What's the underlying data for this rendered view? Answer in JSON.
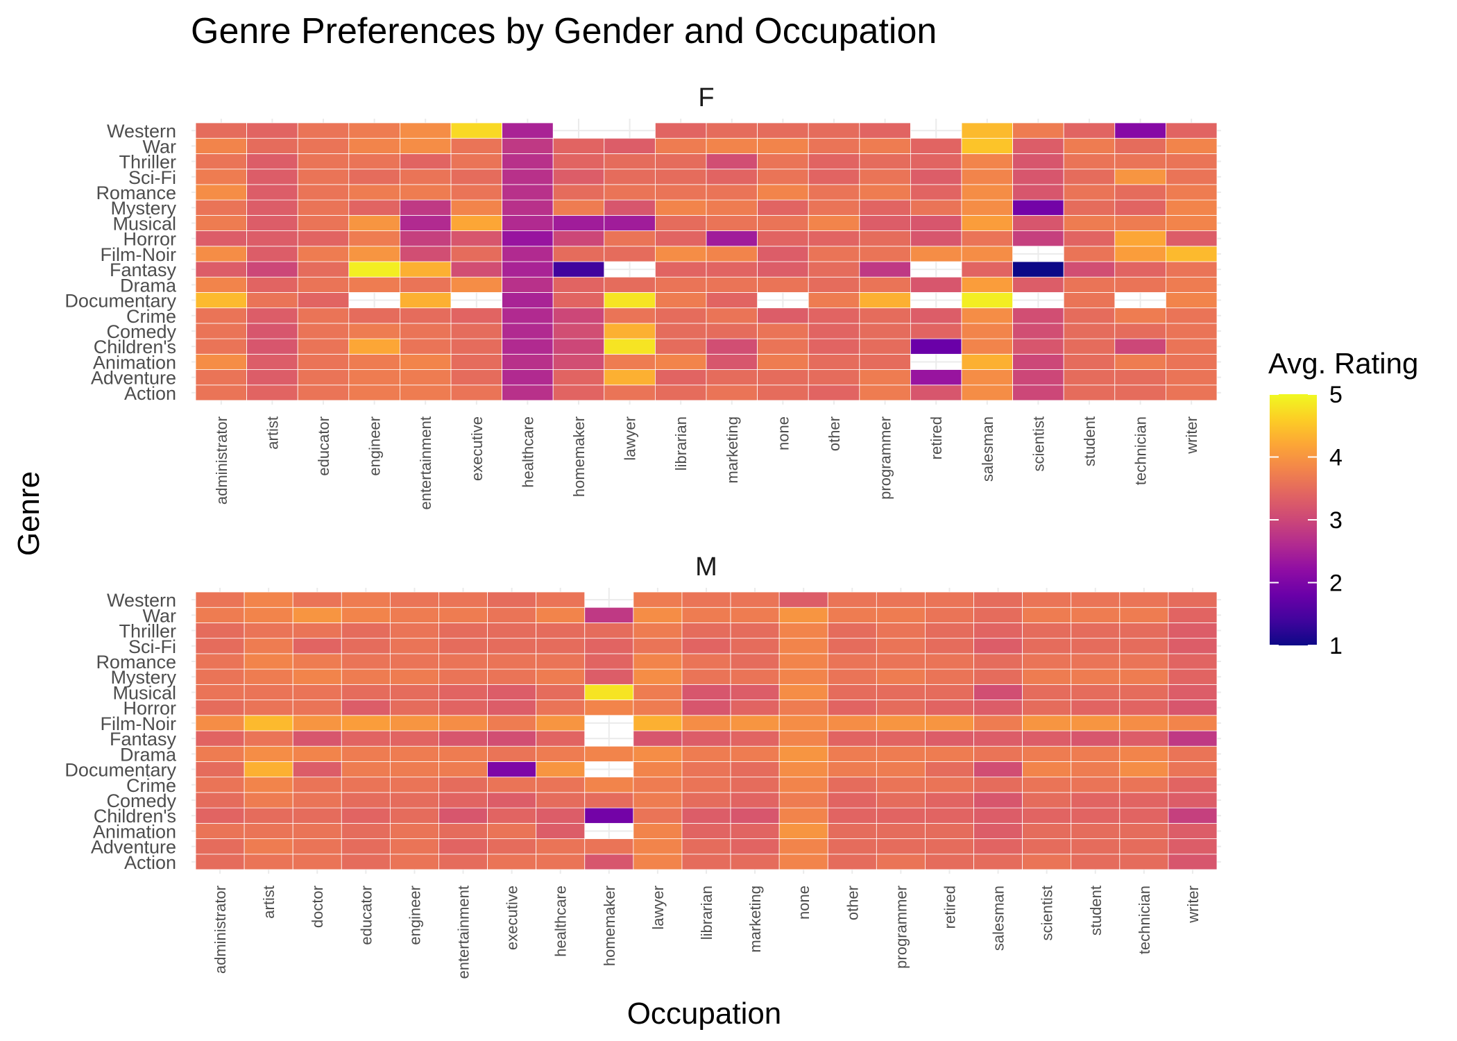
{
  "chart_data": {
    "type": "heatmap",
    "title": "Genre Preferences by Gender and Occupation",
    "xlabel": "Occupation",
    "ylabel": "Genre",
    "genres": [
      "Action",
      "Adventure",
      "Animation",
      "Children's",
      "Comedy",
      "Crime",
      "Documentary",
      "Drama",
      "Fantasy",
      "Film-Noir",
      "Horror",
      "Musical",
      "Mystery",
      "Romance",
      "Sci-Fi",
      "Thriller",
      "War",
      "Western"
    ],
    "legend": {
      "title": "Avg. Rating",
      "range": [
        1,
        5
      ],
      "ticks": [
        1,
        2,
        3,
        4,
        5
      ],
      "palette": "plasma",
      "position": "right"
    },
    "grid": true,
    "panels": [
      {
        "label": "F",
        "occupations": [
          "administrator",
          "artist",
          "educator",
          "engineer",
          "entertainment",
          "executive",
          "healthcare",
          "homemaker",
          "lawyer",
          "librarian",
          "marketing",
          "none",
          "other",
          "programmer",
          "retired",
          "salesman",
          "scientist",
          "student",
          "technician",
          "writer"
        ],
        "values": [
          [
            3.6,
            3.4,
            3.6,
            3.7,
            3.7,
            3.6,
            2.7,
            3.4,
            3.6,
            3.5,
            3.6,
            3.5,
            3.4,
            3.7,
            3.2,
            3.9,
            3.0,
            3.5,
            3.5,
            3.6
          ],
          [
            3.6,
            3.3,
            3.6,
            3.7,
            3.7,
            3.5,
            2.6,
            3.4,
            4.3,
            3.4,
            3.5,
            3.5,
            3.5,
            3.7,
            2.3,
            3.9,
            3.0,
            3.5,
            3.5,
            3.6
          ],
          [
            3.9,
            3.3,
            3.6,
            3.7,
            3.8,
            3.5,
            2.7,
            3.1,
            3.7,
            3.8,
            3.2,
            3.7,
            3.5,
            3.5,
            null,
            4.3,
            3.0,
            3.5,
            3.7,
            3.6
          ],
          [
            3.6,
            3.2,
            3.6,
            4.2,
            3.6,
            3.5,
            2.6,
            3.0,
            4.8,
            3.5,
            3.1,
            3.6,
            3.4,
            3.5,
            1.8,
            3.8,
            3.2,
            3.5,
            3.0,
            3.6
          ],
          [
            3.6,
            3.2,
            3.6,
            3.7,
            3.6,
            3.5,
            2.6,
            3.1,
            4.3,
            3.5,
            3.5,
            3.6,
            3.4,
            3.5,
            3.4,
            3.8,
            3.1,
            3.5,
            3.5,
            3.6
          ],
          [
            3.6,
            3.3,
            3.6,
            3.5,
            3.5,
            3.4,
            2.6,
            3.0,
            3.6,
            3.5,
            3.6,
            3.3,
            3.4,
            3.5,
            3.3,
            3.9,
            3.1,
            3.5,
            3.7,
            3.6
          ],
          [
            4.4,
            3.6,
            3.4,
            null,
            4.3,
            null,
            2.5,
            3.4,
            4.8,
            3.7,
            3.4,
            null,
            3.7,
            4.3,
            null,
            4.9,
            null,
            3.6,
            null,
            3.8
          ],
          [
            3.8,
            3.4,
            3.6,
            3.7,
            3.6,
            3.9,
            2.7,
            3.4,
            3.5,
            3.6,
            3.6,
            3.6,
            3.5,
            3.6,
            3.2,
            4.1,
            3.3,
            3.6,
            3.6,
            3.7
          ],
          [
            3.3,
            3.0,
            3.5,
            4.9,
            4.3,
            3.1,
            2.5,
            1.4,
            null,
            3.4,
            3.4,
            3.3,
            3.5,
            2.8,
            null,
            3.4,
            1.0,
            3.1,
            3.4,
            3.6
          ],
          [
            3.9,
            3.3,
            3.7,
            4.0,
            3.1,
            3.5,
            2.6,
            3.5,
            3.5,
            3.9,
            3.8,
            3.3,
            3.6,
            3.6,
            3.9,
            3.9,
            null,
            3.6,
            4.1,
            4.4
          ],
          [
            3.3,
            3.3,
            3.4,
            3.7,
            2.9,
            3.2,
            2.3,
            3.0,
            3.6,
            3.4,
            2.4,
            3.4,
            3.4,
            3.5,
            3.2,
            3.6,
            2.9,
            3.4,
            4.2,
            3.3
          ],
          [
            3.7,
            3.3,
            3.6,
            4.0,
            2.6,
            4.2,
            2.6,
            2.4,
            2.4,
            3.5,
            3.6,
            3.6,
            3.8,
            3.3,
            3.2,
            4.1,
            3.2,
            3.7,
            3.7,
            3.8
          ],
          [
            3.6,
            3.3,
            3.6,
            3.4,
            2.8,
            3.8,
            2.7,
            3.7,
            3.2,
            3.8,
            3.7,
            3.4,
            3.6,
            3.4,
            3.6,
            3.9,
            1.9,
            3.5,
            3.4,
            3.8
          ],
          [
            3.9,
            3.3,
            3.6,
            3.7,
            3.7,
            3.6,
            2.7,
            3.5,
            3.6,
            3.6,
            3.6,
            3.8,
            3.6,
            3.7,
            3.4,
            3.9,
            3.2,
            3.6,
            3.5,
            3.7
          ],
          [
            3.7,
            3.3,
            3.6,
            3.5,
            3.6,
            3.5,
            2.7,
            3.3,
            3.5,
            3.5,
            3.4,
            3.6,
            3.4,
            3.6,
            3.3,
            3.8,
            3.2,
            3.5,
            4.0,
            3.6
          ],
          [
            3.6,
            3.3,
            3.6,
            3.6,
            3.4,
            3.6,
            2.7,
            3.4,
            3.5,
            3.5,
            3.1,
            3.6,
            3.4,
            3.5,
            3.4,
            3.8,
            3.2,
            3.6,
            3.6,
            3.6
          ],
          [
            3.8,
            3.5,
            3.6,
            3.8,
            3.9,
            3.6,
            2.8,
            3.4,
            3.3,
            3.7,
            3.8,
            3.8,
            3.6,
            3.7,
            3.4,
            4.5,
            3.3,
            3.7,
            3.5,
            3.8
          ],
          [
            3.5,
            3.4,
            3.6,
            3.7,
            3.9,
            4.7,
            2.5,
            null,
            null,
            3.4,
            3.5,
            3.5,
            3.5,
            3.4,
            null,
            4.4,
            3.7,
            3.4,
            2.1,
            3.4
          ]
        ]
      },
      {
        "label": "M",
        "occupations": [
          "administrator",
          "artist",
          "doctor",
          "educator",
          "engineer",
          "entertainment",
          "executive",
          "healthcare",
          "homemaker",
          "lawyer",
          "librarian",
          "marketing",
          "none",
          "other",
          "programmer",
          "retired",
          "salesman",
          "scientist",
          "student",
          "technician",
          "writer"
        ],
        "values": [
          [
            3.5,
            3.6,
            3.6,
            3.5,
            3.6,
            3.5,
            3.6,
            3.6,
            3.2,
            3.8,
            3.5,
            3.5,
            3.8,
            3.5,
            3.6,
            3.5,
            3.5,
            3.6,
            3.5,
            3.5,
            3.2
          ],
          [
            3.5,
            3.7,
            3.6,
            3.5,
            3.6,
            3.4,
            3.5,
            3.6,
            3.6,
            3.8,
            3.5,
            3.4,
            3.8,
            3.5,
            3.5,
            3.5,
            3.4,
            3.5,
            3.5,
            3.5,
            3.3
          ],
          [
            3.6,
            3.6,
            3.6,
            3.5,
            3.6,
            3.5,
            3.6,
            3.3,
            null,
            3.8,
            3.4,
            3.4,
            4.0,
            3.5,
            3.5,
            3.5,
            3.3,
            3.5,
            3.5,
            3.5,
            3.3
          ],
          [
            3.4,
            3.5,
            3.5,
            3.4,
            3.5,
            3.2,
            3.4,
            3.3,
            1.9,
            3.6,
            3.3,
            3.2,
            3.8,
            3.4,
            3.4,
            3.4,
            3.3,
            3.4,
            3.4,
            3.4,
            2.9
          ],
          [
            3.5,
            3.7,
            3.6,
            3.5,
            3.5,
            3.4,
            3.3,
            3.5,
            3.5,
            3.7,
            3.5,
            3.4,
            3.7,
            3.4,
            3.5,
            3.4,
            3.2,
            3.5,
            3.4,
            3.4,
            3.3
          ],
          [
            3.6,
            3.8,
            3.6,
            3.6,
            3.6,
            3.5,
            3.6,
            3.6,
            3.8,
            3.7,
            3.6,
            3.5,
            3.8,
            3.5,
            3.6,
            3.6,
            3.5,
            3.6,
            3.6,
            3.6,
            3.4
          ],
          [
            3.5,
            4.3,
            3.3,
            3.7,
            3.7,
            3.7,
            2.0,
            4.0,
            null,
            3.8,
            3.6,
            3.5,
            3.9,
            3.7,
            3.7,
            3.5,
            3.1,
            3.8,
            3.7,
            3.9,
            3.6
          ],
          [
            3.7,
            3.9,
            3.8,
            3.7,
            3.7,
            3.7,
            3.6,
            3.7,
            3.8,
            3.9,
            3.7,
            3.7,
            4.0,
            3.7,
            3.7,
            3.7,
            3.6,
            3.7,
            3.7,
            3.8,
            3.6
          ],
          [
            3.4,
            3.6,
            3.2,
            3.4,
            3.4,
            3.2,
            3.1,
            3.4,
            null,
            3.2,
            3.3,
            3.4,
            3.8,
            3.4,
            3.4,
            3.3,
            3.3,
            3.3,
            3.2,
            3.3,
            2.8
          ],
          [
            3.9,
            4.4,
            4.0,
            4.1,
            4.0,
            3.9,
            3.7,
            4.0,
            null,
            4.3,
            3.9,
            4.0,
            3.9,
            3.9,
            4.0,
            4.0,
            3.7,
            4.0,
            4.0,
            3.9,
            3.8
          ],
          [
            3.5,
            3.6,
            3.6,
            3.3,
            3.5,
            3.4,
            3.3,
            3.6,
            3.8,
            3.7,
            3.2,
            3.4,
            3.7,
            3.4,
            3.5,
            3.4,
            3.3,
            3.5,
            3.4,
            3.4,
            3.2
          ],
          [
            3.6,
            3.6,
            3.6,
            3.5,
            3.5,
            3.4,
            3.3,
            3.5,
            4.8,
            3.7,
            3.2,
            3.3,
            3.9,
            3.5,
            3.5,
            3.5,
            3.1,
            3.5,
            3.5,
            3.5,
            3.3
          ],
          [
            3.6,
            3.7,
            3.8,
            3.7,
            3.7,
            3.6,
            3.6,
            3.7,
            3.3,
            3.9,
            3.6,
            3.6,
            3.8,
            3.6,
            3.7,
            3.6,
            3.5,
            3.7,
            3.7,
            3.7,
            3.4
          ],
          [
            3.6,
            3.8,
            3.7,
            3.6,
            3.6,
            3.6,
            3.6,
            3.6,
            3.4,
            3.8,
            3.6,
            3.5,
            3.8,
            3.6,
            3.6,
            3.6,
            3.5,
            3.6,
            3.6,
            3.6,
            3.4
          ],
          [
            3.5,
            3.7,
            3.4,
            3.5,
            3.6,
            3.5,
            3.5,
            3.5,
            3.4,
            3.6,
            3.4,
            3.5,
            3.8,
            3.5,
            3.6,
            3.5,
            3.3,
            3.5,
            3.5,
            3.5,
            3.3
          ],
          [
            3.5,
            3.6,
            3.6,
            3.5,
            3.6,
            3.5,
            3.5,
            3.5,
            3.5,
            3.7,
            3.5,
            3.5,
            3.8,
            3.5,
            3.6,
            3.5,
            3.4,
            3.5,
            3.5,
            3.5,
            3.3
          ],
          [
            3.7,
            3.8,
            4.0,
            3.8,
            3.7,
            3.7,
            3.6,
            3.8,
            2.8,
            3.9,
            3.7,
            3.7,
            4.0,
            3.7,
            3.7,
            3.6,
            3.5,
            3.7,
            3.7,
            3.7,
            3.4
          ],
          [
            3.6,
            3.8,
            3.6,
            3.7,
            3.6,
            3.6,
            3.5,
            3.6,
            null,
            3.7,
            3.6,
            3.6,
            3.3,
            3.6,
            3.6,
            3.6,
            3.5,
            3.6,
            3.6,
            3.6,
            3.5
          ]
        ]
      }
    ]
  }
}
